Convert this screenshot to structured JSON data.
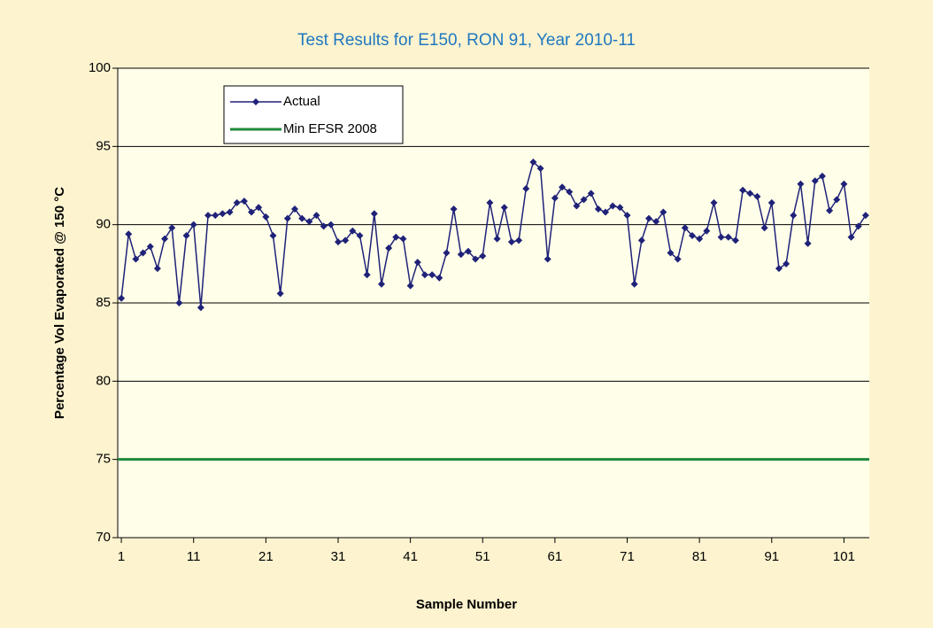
{
  "chart_data": {
    "type": "line",
    "title": "Test Results for E150, RON 91, Year 2010-11",
    "x_label": "Sample Number",
    "y_label": "Percentage Vol Evaporated @ 150   °C",
    "x": [
      1,
      2,
      3,
      4,
      5,
      6,
      7,
      8,
      9,
      10,
      11,
      12,
      13,
      14,
      15,
      16,
      17,
      18,
      19,
      20,
      21,
      22,
      23,
      24,
      25,
      26,
      27,
      28,
      29,
      30,
      31,
      32,
      33,
      34,
      35,
      36,
      37,
      38,
      39,
      40,
      41,
      42,
      43,
      44,
      45,
      46,
      47,
      48,
      49,
      50,
      51,
      52,
      53,
      54,
      55,
      56,
      57,
      58,
      59,
      60,
      61,
      62,
      63,
      64,
      65,
      66,
      67,
      68,
      69,
      70,
      71,
      72,
      73,
      74,
      75,
      76,
      77,
      78,
      79,
      80,
      81,
      82,
      83,
      84,
      85,
      86,
      87,
      88,
      89,
      90,
      91,
      92,
      93,
      94,
      95,
      96,
      97,
      98,
      99,
      100,
      101,
      102,
      103,
      104
    ],
    "series": [
      {
        "name": "Actual",
        "color": "#1f2278",
        "values": [
          85.3,
          89.4,
          87.8,
          88.2,
          88.6,
          87.2,
          89.1,
          89.8,
          85.0,
          89.3,
          90.0,
          84.7,
          90.6,
          90.6,
          90.7,
          90.8,
          91.4,
          91.5,
          90.8,
          91.1,
          90.5,
          89.3,
          85.6,
          90.4,
          91.0,
          90.4,
          90.2,
          90.6,
          89.9,
          90.0,
          88.9,
          89.0,
          89.6,
          89.3,
          86.8,
          90.7,
          86.2,
          88.5,
          89.2,
          89.1,
          86.1,
          87.6,
          86.8,
          86.8,
          86.6,
          88.2,
          91.0,
          88.1,
          88.3,
          87.8,
          88.0,
          91.4,
          89.1,
          91.1,
          88.9,
          89.0,
          92.3,
          94.0,
          93.6,
          87.8,
          91.7,
          92.4,
          92.1,
          91.2,
          91.6,
          92.0,
          91.0,
          90.8,
          91.2,
          91.1,
          90.6,
          86.2,
          89.0,
          90.4,
          90.2,
          90.8,
          88.2,
          87.8,
          89.8,
          89.3,
          89.1,
          89.6,
          91.4,
          89.2,
          89.2,
          89.0,
          92.2,
          92.0,
          91.8,
          89.8,
          91.4,
          87.2,
          87.5,
          90.6,
          92.6,
          88.8,
          92.8,
          93.1,
          90.9,
          91.6,
          92.6,
          89.2,
          89.9,
          90.6
        ]
      },
      {
        "name": "Min EFSR 2008",
        "color": "#1e8a3c",
        "value": 75
      }
    ],
    "xlim": [
      0.5,
      104.5
    ],
    "xticks": [
      1,
      11,
      21,
      31,
      41,
      51,
      61,
      71,
      81,
      91,
      101
    ],
    "ylim": [
      70,
      100
    ],
    "yticks": [
      70,
      75,
      80,
      85,
      90,
      95,
      100
    ],
    "grid": true
  }
}
